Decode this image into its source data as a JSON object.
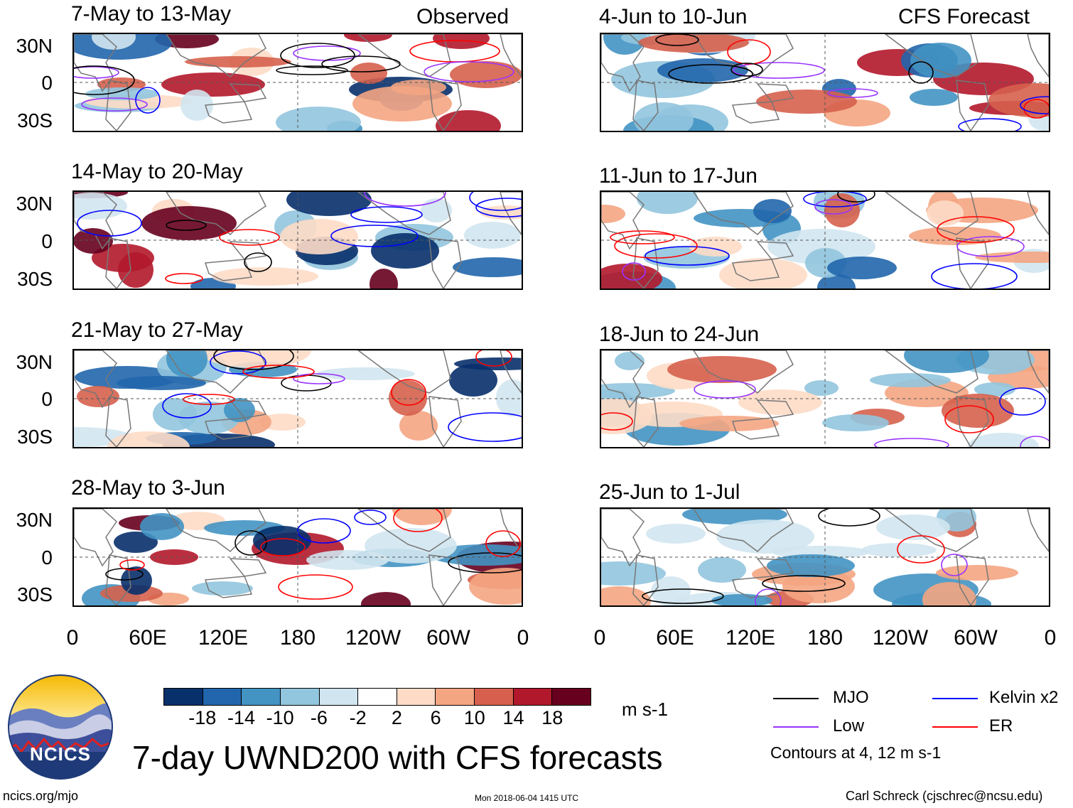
{
  "observed_label": "Observed",
  "forecast_label": "CFS Forecast",
  "observed_panels": [
    {
      "title": "7-May to 13-May"
    },
    {
      "title": "14-May to 20-May"
    },
    {
      "title": "21-May to 27-May"
    },
    {
      "title": "28-May to 3-Jun"
    }
  ],
  "forecast_panels": [
    {
      "title": "4-Jun to 10-Jun"
    },
    {
      "title": "11-Jun to 17-Jun"
    },
    {
      "title": "18-Jun to 24-Jun"
    },
    {
      "title": "25-Jun to 1-Jul"
    }
  ],
  "lat_labels": [
    "30N",
    "0",
    "30S"
  ],
  "lon_labels": [
    "0",
    "60E",
    "120E",
    "180",
    "120W",
    "60W",
    "0"
  ],
  "colorbar": {
    "colors": [
      "#08306b",
      "#2166ac",
      "#4393c3",
      "#92c5de",
      "#d1e5f0",
      "#ffffff",
      "#fddbc7",
      "#f4a582",
      "#d6604d",
      "#b2182b",
      "#67001f"
    ],
    "labels": [
      "-18",
      "-14",
      "-10",
      "-6",
      "-2",
      "2",
      "6",
      "10",
      "14",
      "18"
    ],
    "unit": "m s-1"
  },
  "legend": {
    "mjo": "MJO",
    "low": "Low",
    "kelvin": "Kelvin x2",
    "er": "ER",
    "contours": "Contours at 4, 12 m s-1",
    "mjo_color": "#000000",
    "low_color": "#9933ff",
    "kelvin_color": "#0000ff",
    "er_color": "#ff0000"
  },
  "main_title": "7-day UWND200 with CFS forecasts",
  "logo_text": "NCICS",
  "footer": {
    "url": "ncics.org/mjo",
    "timestamp": "Mon 2018-06-04 1415 UTC",
    "author": "Carl Schreck (cjschrec@ncsu.edu)"
  }
}
